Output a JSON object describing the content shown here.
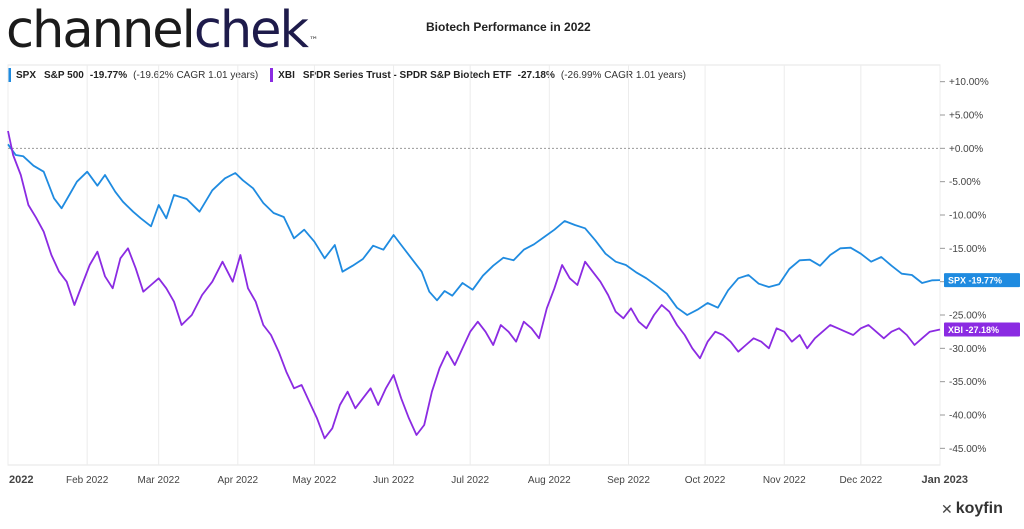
{
  "logo": {
    "part1": "channel",
    "part2": "chek",
    "tm": "™"
  },
  "brand": {
    "name": "koyfin",
    "icon": "koyfin-logo-icon"
  },
  "chart_data": {
    "type": "line",
    "title": "Biotech Performance in 2022",
    "xlabel": "",
    "ylabel": "",
    "ylim": [
      -47.5,
      12.5
    ],
    "y_ticks": [
      10,
      5,
      0,
      -5,
      -10,
      -15,
      -20,
      -25,
      -30,
      -35,
      -40,
      -45
    ],
    "y_tick_labels": [
      "+10.00%",
      "+5.00%",
      "+0.00%",
      "-5.00%",
      "-10.00%",
      "-15.00%",
      "-20.00%",
      "-25.00%",
      "-30.00%",
      "-35.00%",
      "-40.00%",
      "-45.00%"
    ],
    "x_tick_labels": [
      "2022",
      "Feb 2022",
      "Mar 2022",
      "Apr 2022",
      "May 2022",
      "Jun 2022",
      "Jul 2022",
      "Aug 2022",
      "Sep 2022",
      "Oct 2022",
      "Nov 2022",
      "Dec 2022",
      "Jan 2023"
    ],
    "x_tick_days": [
      0,
      31,
      59,
      90,
      120,
      151,
      181,
      212,
      243,
      273,
      304,
      334,
      365
    ],
    "grid": true,
    "legend_position": "top-left",
    "series": [
      {
        "ticker": "SPX",
        "name": "S&P 500",
        "color": "#1f8be0",
        "return_label": "-19.77%",
        "cagr_label": "(-19.62% CAGR 1.01 years)",
        "end_label": "SPX -19.77%",
        "x_days": [
          0,
          3,
          6,
          10,
          14,
          18,
          21,
          24,
          27,
          31,
          35,
          38,
          42,
          45,
          49,
          52,
          56,
          59,
          62,
          65,
          70,
          75,
          80,
          85,
          89,
          92,
          96,
          100,
          104,
          108,
          112,
          116,
          120,
          124,
          128,
          131,
          135,
          139,
          143,
          147,
          151,
          154,
          158,
          162,
          165,
          168,
          171,
          174,
          178,
          182,
          186,
          190,
          194,
          198,
          202,
          206,
          210,
          214,
          218,
          222,
          226,
          230,
          234,
          238,
          242,
          246,
          250,
          254,
          258,
          262,
          266,
          270,
          274,
          278,
          282,
          286,
          290,
          294,
          298,
          302,
          306,
          310,
          314,
          318,
          322,
          326,
          330,
          334,
          338,
          342,
          346,
          350,
          354,
          358,
          362,
          365
        ],
        "values": [
          0.6,
          -1.0,
          -1.2,
          -2.6,
          -3.5,
          -7.5,
          -9.0,
          -7.0,
          -5.0,
          -3.5,
          -5.6,
          -4.0,
          -6.5,
          -8.0,
          -9.5,
          -10.5,
          -11.7,
          -8.5,
          -10.5,
          -7.0,
          -7.6,
          -9.5,
          -6.3,
          -4.5,
          -3.7,
          -4.8,
          -6.0,
          -8.2,
          -9.7,
          -10.3,
          -13.5,
          -12.2,
          -14.0,
          -16.5,
          -14.5,
          -18.5,
          -17.6,
          -16.6,
          -14.6,
          -15.2,
          -13.0,
          -14.5,
          -16.5,
          -18.5,
          -21.5,
          -22.8,
          -21.4,
          -22.1,
          -20.2,
          -21.2,
          -19.1,
          -17.6,
          -16.4,
          -16.8,
          -15.2,
          -14.4,
          -13.3,
          -12.2,
          -10.9,
          -11.5,
          -12.0,
          -13.8,
          -15.8,
          -17.0,
          -17.5,
          -18.6,
          -19.5,
          -20.6,
          -21.8,
          -23.9,
          -25.0,
          -24.2,
          -23.2,
          -23.9,
          -21.3,
          -19.5,
          -19.0,
          -20.3,
          -20.8,
          -20.4,
          -18.1,
          -16.8,
          -16.7,
          -17.6,
          -16.0,
          -15.0,
          -14.9,
          -15.8,
          -17.0,
          -16.3,
          -17.6,
          -18.8,
          -19.0,
          -20.2,
          -19.8,
          -19.77
        ]
      },
      {
        "ticker": "XBI",
        "name": "SPDR Series Trust - SPDR S&P Biotech ETF",
        "color": "#8b2be2",
        "return_label": "-27.18%",
        "cagr_label": "(-26.99% CAGR 1.01 years)",
        "end_label": "XBI -27.18%",
        "x_days": [
          0,
          2,
          5,
          8,
          11,
          14,
          17,
          20,
          23,
          26,
          29,
          32,
          35,
          38,
          41,
          44,
          47,
          50,
          53,
          56,
          59,
          62,
          65,
          68,
          72,
          76,
          80,
          84,
          88,
          91,
          94,
          97,
          100,
          103,
          106,
          109,
          112,
          115,
          118,
          121,
          124,
          127,
          130,
          133,
          136,
          139,
          142,
          145,
          148,
          151,
          154,
          157,
          160,
          163,
          166,
          169,
          172,
          175,
          178,
          181,
          184,
          187,
          190,
          193,
          196,
          199,
          202,
          205,
          208,
          211,
          214,
          217,
          220,
          223,
          226,
          229,
          232,
          235,
          238,
          241,
          244,
          247,
          250,
          253,
          256,
          259,
          262,
          265,
          268,
          271,
          274,
          277,
          280,
          283,
          286,
          289,
          292,
          295,
          298,
          301,
          304,
          307,
          310,
          313,
          316,
          319,
          322,
          325,
          328,
          331,
          334,
          337,
          340,
          343,
          346,
          349,
          352,
          355,
          358,
          361,
          365
        ],
        "values": [
          2.6,
          -1.0,
          -4.0,
          -8.5,
          -10.4,
          -12.5,
          -16.0,
          -18.5,
          -20.0,
          -23.5,
          -20.5,
          -17.5,
          -15.5,
          -19.2,
          -21.0,
          -16.5,
          -15.0,
          -18.0,
          -21.5,
          -20.5,
          -19.5,
          -21.0,
          -23.0,
          -26.5,
          -25.0,
          -22.0,
          -20.0,
          -17.0,
          -20.0,
          -16.0,
          -21.0,
          -23.0,
          -26.5,
          -28.0,
          -30.5,
          -33.5,
          -36.0,
          -35.5,
          -38.0,
          -40.5,
          -43.5,
          -42.0,
          -38.5,
          -36.5,
          -39.0,
          -37.5,
          -36.0,
          -38.5,
          -36.0,
          -34.0,
          -37.5,
          -40.5,
          -43.0,
          -41.5,
          -36.5,
          -33.0,
          -30.5,
          -32.5,
          -30.0,
          -27.5,
          -26.0,
          -27.5,
          -29.5,
          -26.5,
          -27.5,
          -29.0,
          -26.0,
          -27.0,
          -28.5,
          -24.0,
          -21.0,
          -17.5,
          -19.5,
          -20.5,
          -17.0,
          -18.5,
          -20.0,
          -22.0,
          -24.5,
          -25.5,
          -24.0,
          -26.0,
          -27.0,
          -25.0,
          -23.5,
          -24.5,
          -26.5,
          -28.0,
          -30.0,
          -31.5,
          -29.0,
          -27.5,
          -28.0,
          -29.0,
          -30.5,
          -29.5,
          -28.5,
          -29.0,
          -30.0,
          -27.0,
          -27.5,
          -29.0,
          -28.0,
          -30.0,
          -28.5,
          -27.5,
          -26.5,
          -27.0,
          -27.5,
          -28.0,
          -27.0,
          -26.5,
          -27.5,
          -28.5,
          -27.5,
          -27.0,
          -28.0,
          -29.5,
          -28.5,
          -27.5,
          -27.18
        ]
      }
    ]
  }
}
